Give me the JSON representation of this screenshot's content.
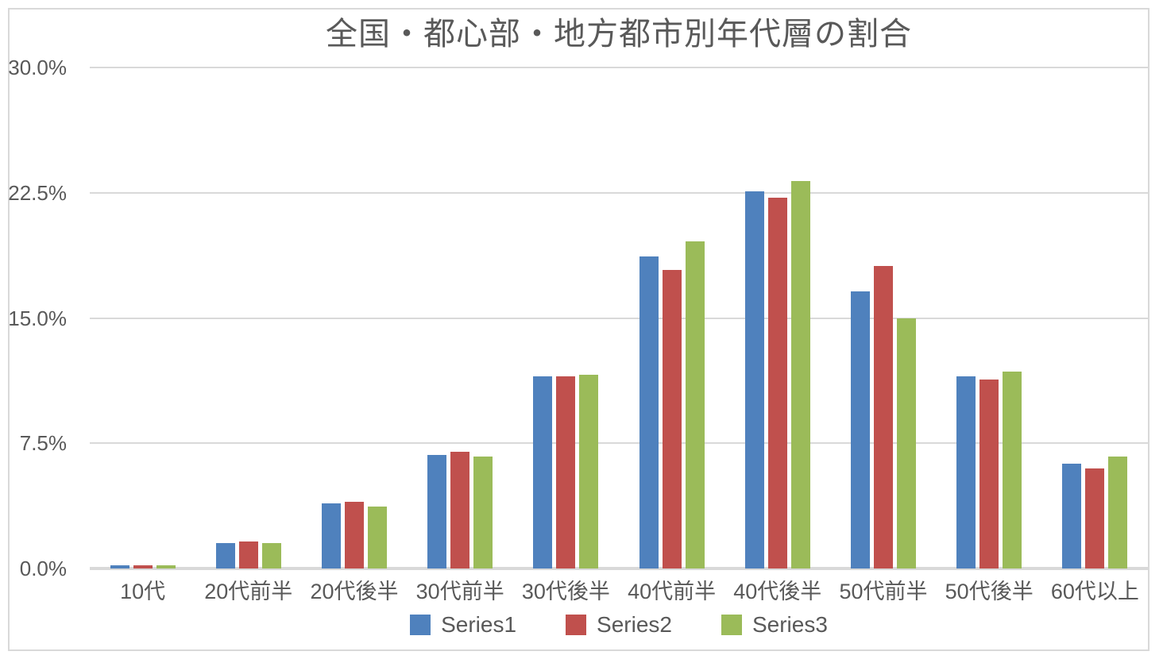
{
  "chart_data": {
    "type": "bar",
    "title": "全国・都心部・地方都市別年代層の割合",
    "categories": [
      "10代",
      "20代前半",
      "20代後半",
      "30代前半",
      "30代後半",
      "40代前半",
      "40代後半",
      "50代前半",
      "50代後半",
      "60代以上"
    ],
    "series": [
      {
        "name": "Series1",
        "color": "#4F81BD",
        "values": [
          0.2,
          1.5,
          3.9,
          6.8,
          11.5,
          18.7,
          22.6,
          16.6,
          11.5,
          6.3
        ]
      },
      {
        "name": "Series2",
        "color": "#C0504D",
        "values": [
          0.2,
          1.6,
          4.0,
          7.0,
          11.5,
          17.9,
          22.2,
          18.1,
          11.3,
          6.0
        ]
      },
      {
        "name": "Series3",
        "color": "#9BBB59",
        "values": [
          0.2,
          1.5,
          3.7,
          6.7,
          11.6,
          19.6,
          23.2,
          15.0,
          11.8,
          6.7
        ]
      }
    ],
    "y_axis": {
      "ticks": [
        {
          "label": "30.0%",
          "value": 30
        },
        {
          "label": "22.5%",
          "value": 22.5
        },
        {
          "label": "15.0%",
          "value": 15
        },
        {
          "label": "7.5%",
          "value": 7.5
        },
        {
          "label": "0.0%",
          "value": 0
        }
      ],
      "ylim": [
        0,
        30
      ]
    },
    "xlabel": "",
    "ylabel": "",
    "grid": true,
    "legend_position": "bottom",
    "styles": {
      "text_color": "#595959",
      "gridline_color": "#D9D9D9",
      "axis_line_color": "#D9D9D9",
      "border_color": "#D9D9D9",
      "background": "#FFFFFF"
    }
  }
}
